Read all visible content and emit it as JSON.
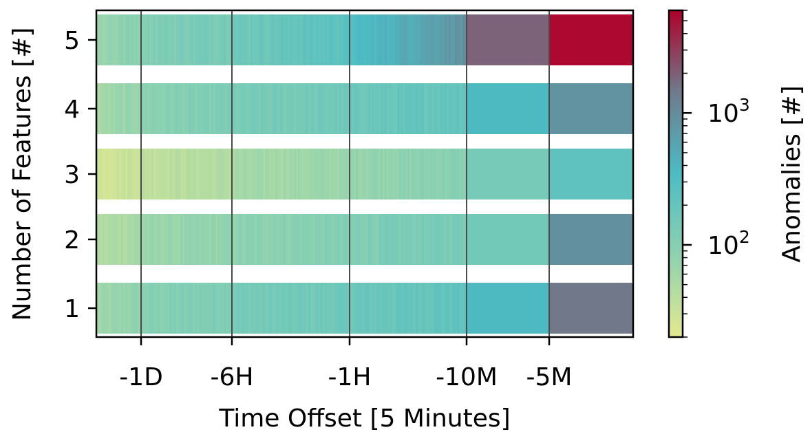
{
  "chart_data": {
    "type": "heatmap",
    "title": "",
    "xlabel": "Time Offset [5 Minutes]",
    "ylabel": "Number of Features [#]",
    "x_ticks": [
      "-1D",
      "-6H",
      "-1H",
      "-10M",
      "-5M"
    ],
    "y_ticks": [
      "1",
      "2",
      "3",
      "4",
      "5"
    ],
    "colorbar": {
      "label": "Anomalies [#]",
      "scale": "log",
      "range": [
        20,
        6000
      ],
      "ticks": [
        {
          "value": 100,
          "base": "10",
          "exp": "2"
        },
        {
          "value": 1000,
          "base": "10",
          "exp": "3"
        }
      ],
      "colors": [
        "#e4e98e",
        "#8fd2b0",
        "#4cbcc4",
        "#6f7b8c",
        "#b0002a"
      ]
    },
    "rows": [
      {
        "features": "1",
        "segments": [
          {
            "from": "start",
            "to": "-1D",
            "start_value": 60,
            "end_value": 85
          },
          {
            "from": "-1D",
            "to": "-6H",
            "start_value": 95,
            "end_value": 125
          },
          {
            "from": "-6H",
            "to": "-1H",
            "start_value": 135,
            "end_value": 165
          },
          {
            "from": "-1H",
            "to": "-10M",
            "start_value": 175,
            "end_value": 230
          },
          {
            "from": "-10M",
            "to": "-5M",
            "start_value": 360,
            "end_value": 360
          },
          {
            "from": "-5M",
            "to": "end",
            "start_value": 1500,
            "end_value": 1500
          }
        ]
      },
      {
        "features": "2",
        "segments": [
          {
            "from": "start",
            "to": "-1D",
            "start_value": 45,
            "end_value": 60
          },
          {
            "from": "-1D",
            "to": "-6H",
            "start_value": 65,
            "end_value": 80
          },
          {
            "from": "-6H",
            "to": "-1H",
            "start_value": 85,
            "end_value": 105
          },
          {
            "from": "-1H",
            "to": "-10M",
            "start_value": 110,
            "end_value": 140
          },
          {
            "from": "-10M",
            "to": "-5M",
            "start_value": 150,
            "end_value": 150
          },
          {
            "from": "-5M",
            "to": "end",
            "start_value": 900,
            "end_value": 900
          }
        ]
      },
      {
        "features": "3",
        "segments": [
          {
            "from": "start",
            "to": "-1D",
            "start_value": 28,
            "end_value": 35
          },
          {
            "from": "-1D",
            "to": "-6H",
            "start_value": 38,
            "end_value": 48
          },
          {
            "from": "-6H",
            "to": "-1H",
            "start_value": 55,
            "end_value": 70
          },
          {
            "from": "-1H",
            "to": "-10M",
            "start_value": 75,
            "end_value": 100
          },
          {
            "from": "-10M",
            "to": "-5M",
            "start_value": 140,
            "end_value": 140
          },
          {
            "from": "-5M",
            "to": "end",
            "start_value": 230,
            "end_value": 230
          }
        ]
      },
      {
        "features": "4",
        "segments": [
          {
            "from": "start",
            "to": "-1D",
            "start_value": 55,
            "end_value": 80
          },
          {
            "from": "-1D",
            "to": "-6H",
            "start_value": 90,
            "end_value": 120
          },
          {
            "from": "-6H",
            "to": "-1H",
            "start_value": 125,
            "end_value": 160
          },
          {
            "from": "-1H",
            "to": "-10M",
            "start_value": 170,
            "end_value": 220
          },
          {
            "from": "-10M",
            "to": "-5M",
            "start_value": 360,
            "end_value": 360
          },
          {
            "from": "-5M",
            "to": "end",
            "start_value": 850,
            "end_value": 850
          }
        ]
      },
      {
        "features": "5",
        "segments": [
          {
            "from": "start",
            "to": "-1D",
            "start_value": 70,
            "end_value": 100
          },
          {
            "from": "-1D",
            "to": "-6H",
            "start_value": 110,
            "end_value": 150
          },
          {
            "from": "-6H",
            "to": "-1H",
            "start_value": 160,
            "end_value": 260
          },
          {
            "from": "-1H",
            "to": "-10M",
            "start_value": 300,
            "end_value": 900
          },
          {
            "from": "-10M",
            "to": "-5M",
            "start_value": 1900,
            "end_value": 1900
          },
          {
            "from": "-5M",
            "to": "end",
            "start_value": 5500,
            "end_value": 5500
          }
        ]
      }
    ]
  }
}
